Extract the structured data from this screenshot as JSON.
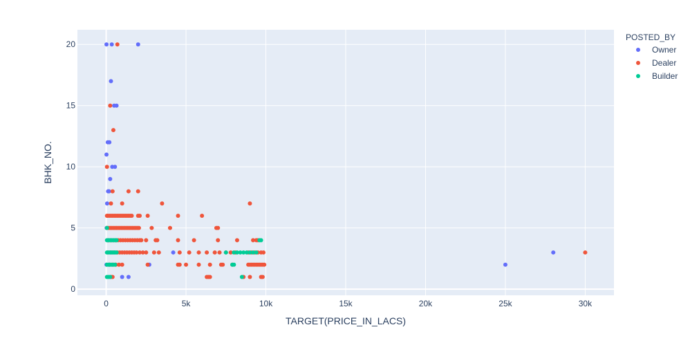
{
  "chart_data": {
    "type": "scatter",
    "xlabel": "TARGET(PRICE_IN_LACS)",
    "ylabel": "BHK_NO.",
    "xlim": [
      -1800,
      31800
    ],
    "ylim": [
      -0.5,
      21.2
    ],
    "x_ticks": [
      0,
      5000,
      10000,
      15000,
      20000,
      25000,
      30000
    ],
    "x_tick_labels": [
      "0",
      "5k",
      "10k",
      "15k",
      "20k",
      "25k",
      "30k"
    ],
    "y_ticks": [
      0,
      5,
      10,
      15,
      20
    ],
    "y_tick_labels": [
      "0",
      "5",
      "10",
      "15",
      "20"
    ],
    "grid": true,
    "legend_title": "POSTED_BY",
    "legend_position": "top-right",
    "series": [
      {
        "name": "Owner",
        "color": "#636efa",
        "points": [
          [
            20,
            20
          ],
          [
            350,
            20
          ],
          [
            2000,
            20
          ],
          [
            300,
            17
          ],
          [
            500,
            15
          ],
          [
            650,
            15
          ],
          [
            100,
            12
          ],
          [
            200,
            12
          ],
          [
            20,
            11
          ],
          [
            380,
            10
          ],
          [
            550,
            10
          ],
          [
            120,
            8
          ],
          [
            250,
            9
          ],
          [
            180,
            8
          ],
          [
            60,
            7
          ],
          [
            30,
            5
          ],
          [
            100,
            4
          ],
          [
            300,
            3
          ],
          [
            500,
            3
          ],
          [
            20,
            2
          ],
          [
            200,
            2
          ],
          [
            1000,
            1
          ],
          [
            1400,
            1
          ],
          [
            2700,
            2
          ],
          [
            4200,
            3
          ],
          [
            25000,
            2
          ],
          [
            28000,
            3
          ]
        ]
      },
      {
        "name": "Dealer",
        "color": "#ef553b",
        "points": [
          [
            700,
            20
          ],
          [
            250,
            15
          ],
          [
            450,
            13
          ],
          [
            50,
            10
          ],
          [
            400,
            8
          ],
          [
            1400,
            8
          ],
          [
            2000,
            8
          ],
          [
            300,
            7
          ],
          [
            1000,
            7
          ],
          [
            3500,
            7
          ],
          [
            9000,
            7
          ],
          [
            50,
            6
          ],
          [
            100,
            6
          ],
          [
            200,
            6
          ],
          [
            300,
            6
          ],
          [
            400,
            6
          ],
          [
            500,
            6
          ],
          [
            600,
            6
          ],
          [
            700,
            6
          ],
          [
            800,
            6
          ],
          [
            900,
            6
          ],
          [
            1000,
            6
          ],
          [
            1100,
            6
          ],
          [
            1200,
            6
          ],
          [
            1300,
            6
          ],
          [
            1400,
            6
          ],
          [
            1500,
            6
          ],
          [
            1600,
            6
          ],
          [
            2000,
            6
          ],
          [
            2100,
            6
          ],
          [
            2600,
            6
          ],
          [
            4500,
            6
          ],
          [
            6000,
            6
          ],
          [
            50,
            5
          ],
          [
            150,
            5
          ],
          [
            250,
            5
          ],
          [
            350,
            5
          ],
          [
            450,
            5
          ],
          [
            550,
            5
          ],
          [
            650,
            5
          ],
          [
            750,
            5
          ],
          [
            850,
            5
          ],
          [
            950,
            5
          ],
          [
            1050,
            5
          ],
          [
            1150,
            5
          ],
          [
            1250,
            5
          ],
          [
            1350,
            5
          ],
          [
            1450,
            5
          ],
          [
            1550,
            5
          ],
          [
            1650,
            5
          ],
          [
            1750,
            5
          ],
          [
            1850,
            5
          ],
          [
            1950,
            5
          ],
          [
            2050,
            5
          ],
          [
            2850,
            5
          ],
          [
            4000,
            5
          ],
          [
            6900,
            5
          ],
          [
            7000,
            5
          ],
          [
            150,
            4
          ],
          [
            300,
            4
          ],
          [
            450,
            4
          ],
          [
            600,
            4
          ],
          [
            750,
            4
          ],
          [
            900,
            4
          ],
          [
            1050,
            4
          ],
          [
            1200,
            4
          ],
          [
            1350,
            4
          ],
          [
            1500,
            4
          ],
          [
            1650,
            4
          ],
          [
            1800,
            4
          ],
          [
            1950,
            4
          ],
          [
            2100,
            4
          ],
          [
            2200,
            4
          ],
          [
            2500,
            4
          ],
          [
            3100,
            4
          ],
          [
            3200,
            4
          ],
          [
            4500,
            4
          ],
          [
            5500,
            4
          ],
          [
            7000,
            4
          ],
          [
            8200,
            4
          ],
          [
            9200,
            4
          ],
          [
            9400,
            4
          ],
          [
            9500,
            4
          ],
          [
            100,
            3
          ],
          [
            250,
            3
          ],
          [
            400,
            3
          ],
          [
            550,
            3
          ],
          [
            700,
            3
          ],
          [
            850,
            3
          ],
          [
            1000,
            3
          ],
          [
            1150,
            3
          ],
          [
            1300,
            3
          ],
          [
            1450,
            3
          ],
          [
            1600,
            3
          ],
          [
            1750,
            3
          ],
          [
            1900,
            3
          ],
          [
            2100,
            3
          ],
          [
            2300,
            3
          ],
          [
            2500,
            3
          ],
          [
            3000,
            3
          ],
          [
            3300,
            3
          ],
          [
            4600,
            3
          ],
          [
            5200,
            3
          ],
          [
            5800,
            3
          ],
          [
            6300,
            3
          ],
          [
            6800,
            3
          ],
          [
            7100,
            3
          ],
          [
            7500,
            3
          ],
          [
            7800,
            3
          ],
          [
            8100,
            3
          ],
          [
            8900,
            3
          ],
          [
            9100,
            3
          ],
          [
            9300,
            3
          ],
          [
            9500,
            3
          ],
          [
            9700,
            3
          ],
          [
            9850,
            3
          ],
          [
            30000,
            3
          ],
          [
            200,
            2
          ],
          [
            400,
            2
          ],
          [
            600,
            2
          ],
          [
            800,
            2
          ],
          [
            1000,
            2
          ],
          [
            2600,
            2
          ],
          [
            4500,
            2
          ],
          [
            4600,
            2
          ],
          [
            5000,
            2
          ],
          [
            5800,
            2
          ],
          [
            6500,
            2
          ],
          [
            7200,
            2
          ],
          [
            7300,
            2
          ],
          [
            7900,
            2
          ],
          [
            8900,
            2
          ],
          [
            9000,
            2
          ],
          [
            9100,
            2
          ],
          [
            9200,
            2
          ],
          [
            9300,
            2
          ],
          [
            9400,
            2
          ],
          [
            9500,
            2
          ],
          [
            9600,
            2
          ],
          [
            9700,
            2
          ],
          [
            9800,
            2
          ],
          [
            9900,
            2
          ],
          [
            300,
            1
          ],
          [
            400,
            1
          ],
          [
            6300,
            1
          ],
          [
            6400,
            1
          ],
          [
            6500,
            1
          ],
          [
            8600,
            1
          ],
          [
            9000,
            1
          ],
          [
            9700,
            1
          ],
          [
            9800,
            1
          ]
        ]
      },
      {
        "name": "Builder",
        "color": "#00cc96",
        "points": [
          [
            50,
            5
          ],
          [
            50,
            4
          ],
          [
            150,
            4
          ],
          [
            250,
            4
          ],
          [
            350,
            4
          ],
          [
            450,
            4
          ],
          [
            550,
            4
          ],
          [
            650,
            4
          ],
          [
            9600,
            4
          ],
          [
            9700,
            4
          ],
          [
            50,
            3
          ],
          [
            150,
            3
          ],
          [
            250,
            3
          ],
          [
            350,
            3
          ],
          [
            450,
            3
          ],
          [
            550,
            3
          ],
          [
            650,
            3
          ],
          [
            7500,
            3
          ],
          [
            8000,
            3
          ],
          [
            8200,
            3
          ],
          [
            8400,
            3
          ],
          [
            8600,
            3
          ],
          [
            8800,
            3
          ],
          [
            9000,
            3
          ],
          [
            9200,
            3
          ],
          [
            9400,
            3
          ],
          [
            50,
            2
          ],
          [
            150,
            2
          ],
          [
            250,
            2
          ],
          [
            350,
            2
          ],
          [
            450,
            2
          ],
          [
            550,
            2
          ],
          [
            7900,
            2
          ],
          [
            8000,
            2
          ],
          [
            50,
            1
          ],
          [
            150,
            1
          ],
          [
            250,
            1
          ],
          [
            8500,
            1
          ]
        ]
      }
    ]
  }
}
